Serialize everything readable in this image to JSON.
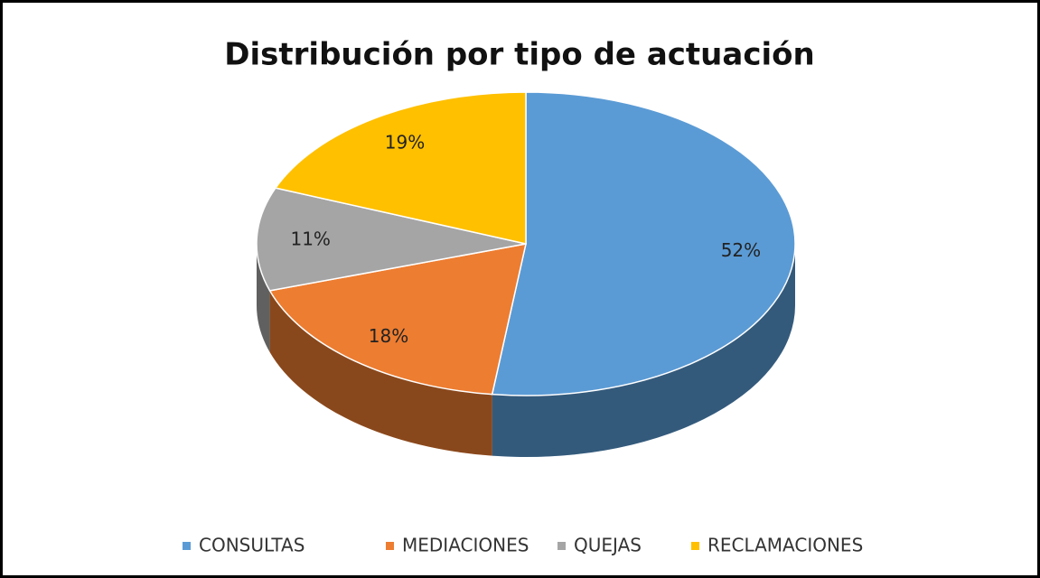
{
  "chart_data": {
    "type": "pie",
    "title": "Distribución por tipo de actuación",
    "categories": [
      "CONSULTAS",
      "MEDIACIONES",
      "QUEJAS",
      "RECLAMACIONES"
    ],
    "values": [
      52,
      18,
      11,
      19
    ],
    "value_labels": [
      "52%",
      "18%",
      "11%",
      "19%"
    ],
    "colors": [
      "#5b9bd5",
      "#ed7d31",
      "#a5a5a5",
      "#ffc000"
    ],
    "legend": "bottom"
  }
}
